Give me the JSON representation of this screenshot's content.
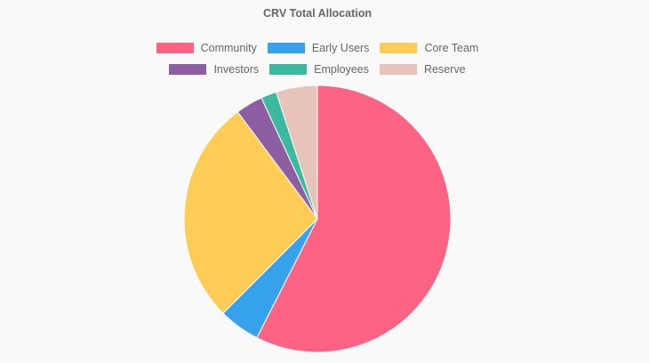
{
  "chart_data": {
    "type": "pie",
    "title": "CRV Total Allocation",
    "categories": [
      "Community",
      "Early Users",
      "Core Team",
      "Investors",
      "Employees",
      "Reserve"
    ],
    "values": [
      57.5,
      5,
      27.3,
      3.3,
      1.9,
      5
    ],
    "colors": [
      "#ff6384",
      "#36a2eb",
      "#ffcd56",
      "#8e5ea2",
      "#3cba9f",
      "#e8c3b9"
    ],
    "legend_position": "top",
    "start_angle_deg": -90,
    "direction": "clockwise"
  },
  "legend": {
    "rows": [
      [
        0,
        1,
        2
      ],
      [
        3,
        4,
        5
      ]
    ]
  }
}
